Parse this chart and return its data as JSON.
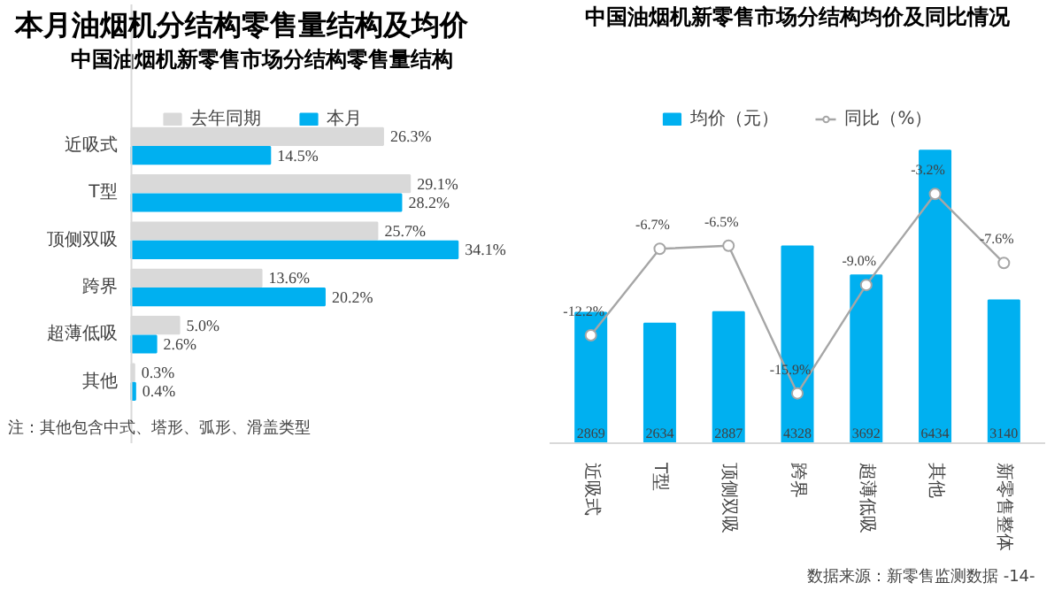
{
  "chart_data": [
    {
      "type": "bar",
      "orientation": "horizontal",
      "title": "中国油烟机新零售市场分结构零售量结构",
      "categories": [
        "近吸式",
        "T型",
        "顶侧双吸",
        "跨界",
        "超薄低吸",
        "其他"
      ],
      "legend": "top",
      "tick_labels": "y",
      "grid": false,
      "series": [
        {
          "name": "去年同期",
          "color": "#d9d9d9",
          "values": [
            26.3,
            29.1,
            25.7,
            13.6,
            5.0,
            0.3
          ],
          "value_labels": [
            "26.3%",
            "29.1%",
            "25.7%",
            "13.6%",
            "5.0%",
            "0.3%"
          ]
        },
        {
          "name": "本月",
          "color": "#00b0f0",
          "values": [
            14.5,
            28.2,
            34.1,
            20.2,
            2.6,
            0.4
          ],
          "value_labels": [
            "14.5%",
            "28.2%",
            "34.1%",
            "20.2%",
            "2.6%",
            "0.4%"
          ]
        }
      ],
      "annotations": [
        "本月油烟机分结构零售量结构及均价",
        "注：其他包含中式、塔形、弧形、滑盖类型"
      ]
    },
    {
      "type": "bar",
      "title": "中国油烟机新零售市场分结构均价及同比情况",
      "categories": [
        "近吸式",
        "T型",
        "顶侧双吸",
        "跨界",
        "超薄低吸",
        "其他",
        "新零售整体"
      ],
      "legend": "top",
      "tick_labels": "x",
      "grid": false,
      "data_labels": true,
      "series": [
        {
          "name": "均价（元）",
          "color": "#00b0f0",
          "values": [
            2869,
            2634,
            2887,
            4328,
            3692,
            6434,
            3140
          ]
        },
        {
          "name": "同比（%）",
          "type": "line",
          "axis": "y2",
          "color": "#a6a6a6",
          "marker": "circle",
          "values": [
            -12.2,
            -6.7,
            -6.5,
            -15.9,
            -9.0,
            -3.2,
            -7.6
          ],
          "value_labels": [
            "-12.2%",
            "-6.7%",
            "-6.5%",
            "-15.9%",
            "-9.0%",
            "-3.2%",
            "-7.6%"
          ]
        }
      ],
      "annotations": [
        "数据来源：新零售监测数据",
        "-14-"
      ]
    }
  ]
}
